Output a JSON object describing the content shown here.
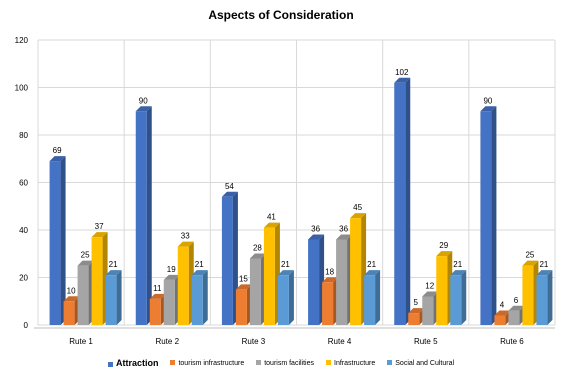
{
  "chart_data": {
    "type": "bar",
    "title": "Aspects of Consideration",
    "categories": [
      "Rute 1",
      "Rute 2",
      "Rute 3",
      "Rute 4",
      "Rute 5",
      "Rute 6"
    ],
    "ylim": [
      0,
      120
    ],
    "yticks": [
      0,
      20,
      40,
      60,
      80,
      100,
      120
    ],
    "grid": true,
    "legend_position": "bottom",
    "series": [
      {
        "name": "Attraction",
        "color": "#4472C4",
        "values": [
          69,
          90,
          54,
          36,
          102,
          90
        ]
      },
      {
        "name": "tourism infrastructure",
        "color": "#ED7D31",
        "values": [
          10,
          11,
          15,
          18,
          5,
          4
        ]
      },
      {
        "name": "tourism facilities",
        "color": "#A5A5A5",
        "values": [
          25,
          19,
          28,
          36,
          12,
          6
        ]
      },
      {
        "name": "Infrastructure",
        "color": "#FFC000",
        "values": [
          37,
          33,
          41,
          45,
          29,
          25
        ]
      },
      {
        "name": "Social and Cultural",
        "color": "#5B9BD5",
        "values": [
          21,
          21,
          21,
          21,
          21,
          21
        ]
      }
    ]
  }
}
